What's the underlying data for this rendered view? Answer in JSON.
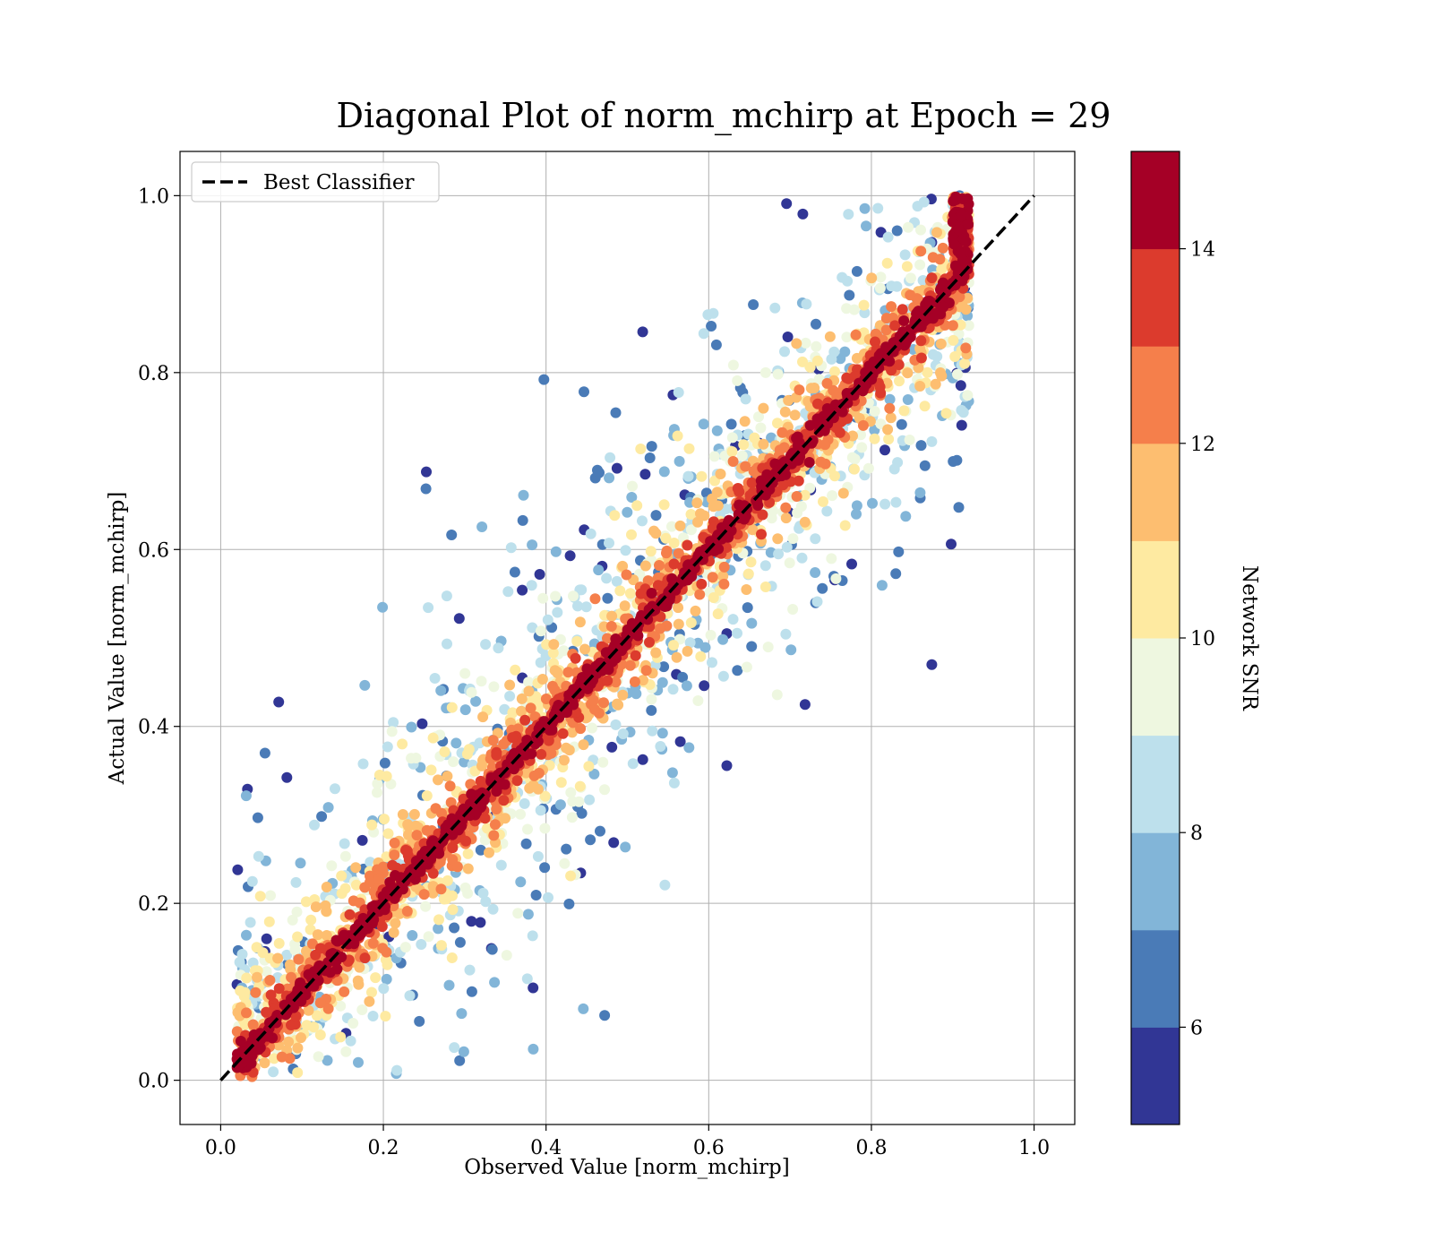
{
  "chart_data": {
    "type": "scatter",
    "title": "Diagonal Plot of norm_mchirp at Epoch = 29",
    "xlabel": "Observed Value [norm_mchirp]",
    "ylabel": "Actual Value [norm_mchirp]",
    "xlim": [
      -0.05,
      1.05
    ],
    "ylim": [
      -0.05,
      1.05
    ],
    "xticks": [
      "0.0",
      "0.2",
      "0.4",
      "0.6",
      "0.8",
      "1.0"
    ],
    "yticks": [
      "0.0",
      "0.2",
      "0.4",
      "0.6",
      "0.8",
      "1.0"
    ],
    "grid": true,
    "legend": {
      "position": "top-left",
      "entries": [
        {
          "label": "Best Classifier",
          "style": "dashed",
          "color": "#000000"
        }
      ]
    },
    "reference_line": {
      "name": "Best Classifier",
      "x": [
        0.0,
        1.0
      ],
      "y": [
        0.0,
        1.0
      ]
    },
    "colorbar": {
      "label": "Network SNR",
      "range": [
        5,
        15
      ],
      "ticks": [
        "6",
        "8",
        "10",
        "12",
        "14"
      ],
      "colors": [
        "#313695",
        "#4575b4",
        "#74add1",
        "#abd9e9",
        "#e0f3f8",
        "#fee090",
        "#fdae61",
        "#f46d43",
        "#d73027",
        "#a50026"
      ],
      "colors_displayed": [
        "#313695",
        "#4a7bb7",
        "#82b5d8",
        "#bde0ec",
        "#eef7e0",
        "#feeaa1",
        "#fdbe70",
        "#f57f4b",
        "#dc3b2d",
        "#a50026"
      ]
    },
    "point_cloud": {
      "description_note": "dense scatter of predictions vs truth, high-SNR points concentrated on the diagonal, low-SNR points scattered away from it",
      "x_range": [
        0.02,
        0.92
      ],
      "y_range": [
        0.0,
        1.0
      ],
      "center_snr": 14.5
    }
  }
}
